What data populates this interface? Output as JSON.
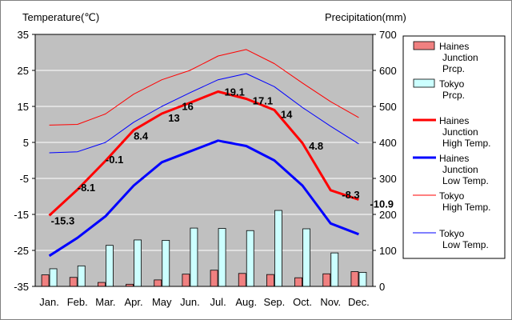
{
  "chart_data": {
    "type": "bar+line",
    "left_axis_title": "Temperature(℃)",
    "right_axis_title": "Precipitation(mm)",
    "categories": [
      "Jan.",
      "Feb.",
      "Mar.",
      "Apr.",
      "May",
      "Jun.",
      "Jul.",
      "Aug.",
      "Sep.",
      "Oct.",
      "Nov.",
      "Dec."
    ],
    "temp_axis": {
      "min": -35,
      "max": 35,
      "ticks": [
        35,
        25,
        15,
        5,
        -5,
        -15,
        -25,
        -35
      ]
    },
    "precip_axis": {
      "min": 0,
      "max": 700,
      "ticks": [
        700,
        600,
        500,
        400,
        300,
        200,
        100,
        0
      ]
    },
    "bar_series": [
      {
        "key": "haines_prcp",
        "legend_lines": [
          "Haines",
          "Junction",
          "Prcp."
        ],
        "color": "#f08080",
        "values": [
          32,
          25,
          11,
          6,
          18,
          34,
          45,
          36,
          33,
          24,
          35,
          41
        ]
      },
      {
        "key": "tokyo_prcp",
        "legend_lines": [
          "Tokyo",
          "Prcp."
        ],
        "color": "#ccffff",
        "values": [
          49,
          57,
          114,
          129,
          128,
          162,
          161,
          155,
          211,
          160,
          93,
          39
        ]
      }
    ],
    "line_series": [
      {
        "key": "haines_high",
        "legend_lines": [
          "Haines",
          "Junction",
          "High Temp."
        ],
        "color": "#ff0000",
        "width": 3,
        "values": [
          -15.3,
          -8.1,
          -0.1,
          8.4,
          13,
          16,
          19.1,
          17.1,
          14,
          4.8,
          -8.3,
          -10.9
        ],
        "labels": [
          "-15.3",
          "-8.1",
          "-0.1",
          "8.4",
          "13",
          "16",
          "19.1",
          "17.1",
          "14",
          "4.8",
          "-8.3",
          "-10.9"
        ]
      },
      {
        "key": "haines_low",
        "legend_lines": [
          "Haines",
          "Junction",
          "Low Temp."
        ],
        "color": "#0000ff",
        "width": 3,
        "values": [
          -26.5,
          -21.5,
          -15.5,
          -7,
          -0.5,
          2.5,
          5.5,
          4,
          0,
          -7,
          -17.5,
          -20.5
        ]
      },
      {
        "key": "tokyo_high",
        "legend_lines": [
          "Tokyo",
          "High Temp."
        ],
        "color": "#ff0000",
        "width": 1,
        "values": [
          9.8,
          10,
          12.9,
          18.4,
          22.4,
          25,
          29,
          30.8,
          26.9,
          21.5,
          16.3,
          11.9
        ]
      },
      {
        "key": "tokyo_low",
        "legend_lines": [
          "Tokyo",
          "Low Temp."
        ],
        "color": "#0000ff",
        "width": 1,
        "values": [
          2.1,
          2.4,
          5,
          10.6,
          15,
          18.8,
          22.4,
          24.1,
          20.5,
          14.7,
          9.5,
          4.6
        ]
      }
    ],
    "plot_background": "#c0c0c0",
    "grid": true,
    "legend_position": "right"
  }
}
